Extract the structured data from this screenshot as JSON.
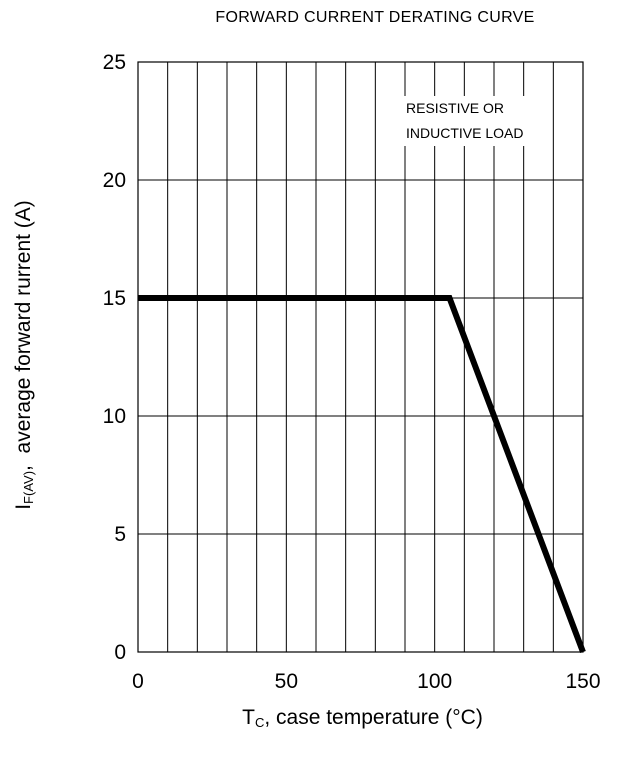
{
  "chart_data": {
    "type": "line",
    "title": "FORWARD CURRENT DERATING CURVE",
    "xlabel_main": "T",
    "xlabel_sub": "C",
    "xlabel_rest": ", case temperature (°C)",
    "ylabel_main": "I",
    "ylabel_sub": "F(AV)",
    "ylabel_rest": ",  average forward rurrent (A)",
    "xlim": [
      0,
      150
    ],
    "ylim": [
      0,
      25
    ],
    "x_ticks": [
      0,
      50,
      100,
      150
    ],
    "y_ticks": [
      0,
      5,
      10,
      15,
      20,
      25
    ],
    "x_tick_labels": [
      "0",
      "50",
      "100",
      "150"
    ],
    "y_tick_labels": [
      "0",
      "5",
      "10",
      "15",
      "20",
      "25"
    ],
    "grid": true,
    "annotation_lines": [
      "RESISTIVE OR",
      "INDUCTIVE LOAD"
    ],
    "series": [
      {
        "x": [
          0,
          105,
          150
        ],
        "y": [
          15,
          15,
          0
        ]
      }
    ]
  }
}
